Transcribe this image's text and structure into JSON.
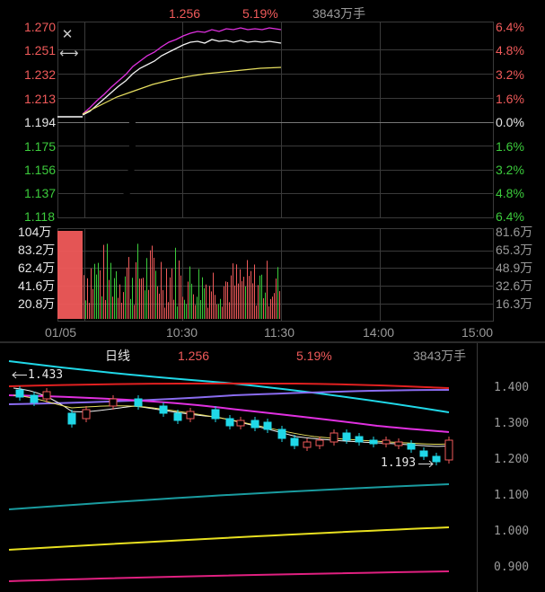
{
  "intraday": {
    "header": {
      "price": "1.256",
      "change_pct": "5.19%",
      "volume": "3843万手"
    },
    "price_axis_left": [
      "1.270",
      "1.251",
      "1.232",
      "1.213",
      "1.194",
      "1.175",
      "1.156",
      "1.137",
      "1.118"
    ],
    "pct_axis_right": [
      "6.4%",
      "4.8%",
      "3.2%",
      "1.6%",
      "0.0%",
      "1.6%",
      "3.2%",
      "4.8%",
      "6.4%"
    ],
    "volume_axis_left": [
      "104万",
      "83.2万",
      "62.4万",
      "41.6万",
      "20.8万"
    ],
    "volume_axis_right": [
      "81.6万",
      "65.3万",
      "48.9万",
      "32.6万",
      "16.3万"
    ],
    "time_axis": [
      "01/05",
      "10:30",
      "11:30",
      "14:00",
      "15:00"
    ]
  },
  "daily": {
    "header": {
      "period_label": "日线",
      "price": "1.256",
      "change_pct": "5.19%",
      "volume": "3843万手"
    },
    "price_axis": [
      "1.400",
      "1.300",
      "1.200",
      "1.100",
      "1.000",
      "0.900"
    ],
    "annotations": {
      "high_marker": "1.433",
      "low_marker": "1.193"
    }
  },
  "icons": {
    "close": "close-icon",
    "expand": "resize-horizontal-icon"
  },
  "colors": {
    "up": "#f05a5a",
    "down": "#3ccc3c",
    "price_line": "#ffffff",
    "avg_line": "#e8e060",
    "ma_magenta": "#e030e0",
    "ma_cyan": "#20d8e8",
    "ma_red": "#e02020",
    "ma_purple": "#8a6cf0",
    "ma_teal": "#1a9ca0",
    "ma_yellow": "#e8e020",
    "ma_pink": "#e02080",
    "grid": "#3a3a3a"
  }
}
